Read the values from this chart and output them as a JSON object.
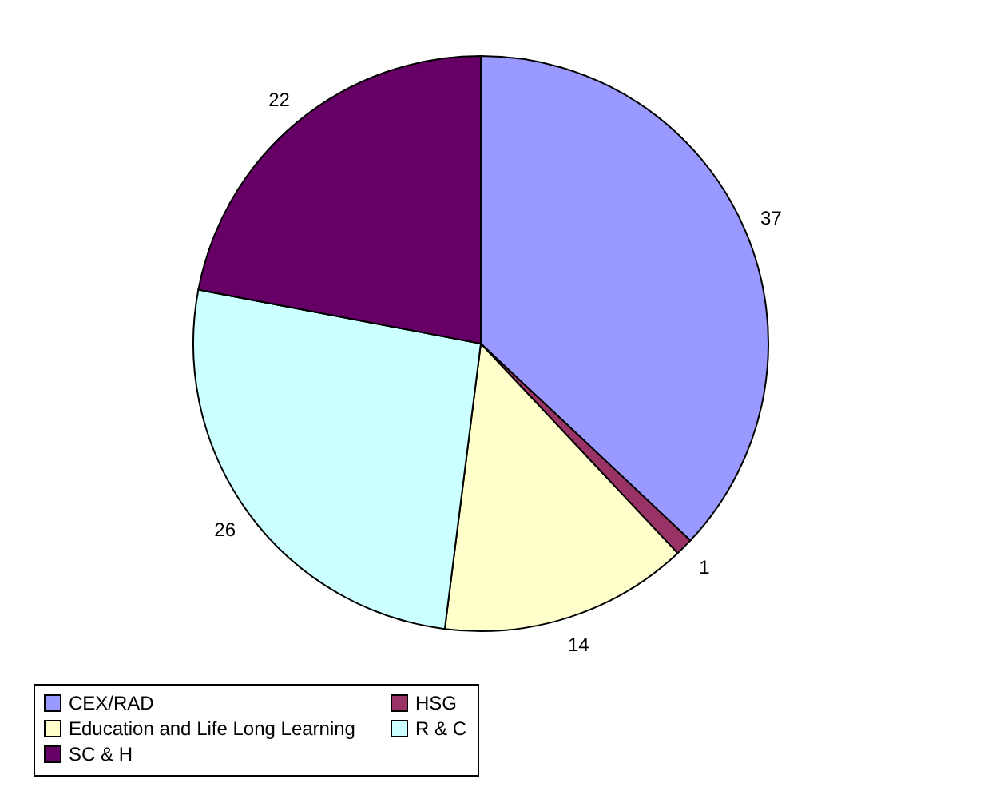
{
  "chart_data": {
    "type": "pie",
    "categories": [
      "CEX/RAD",
      "HSG",
      "Education and Life Long Learning",
      "R & C",
      "SC & H"
    ],
    "values": [
      37,
      1,
      14,
      26,
      22
    ],
    "colors": [
      "#9999ff",
      "#993366",
      "#ffffcc",
      "#ccffff",
      "#660066"
    ],
    "data_labels": true,
    "legend": "bottom"
  }
}
